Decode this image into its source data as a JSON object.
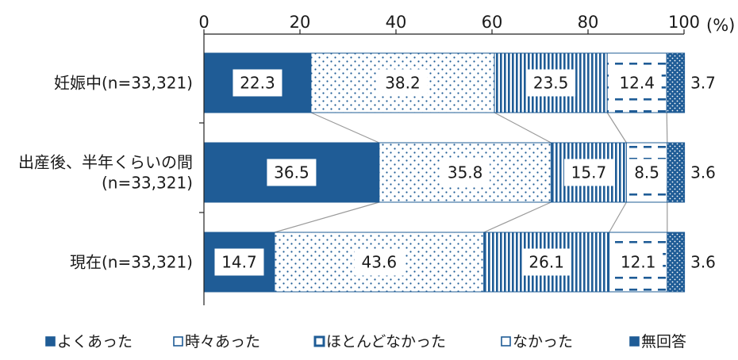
{
  "chart_data": {
    "type": "bar",
    "orientation": "horizontal",
    "stacked": true,
    "unit": "(%)",
    "xlim": [
      0,
      100
    ],
    "xticks": [
      "0",
      "20",
      "40",
      "60",
      "80",
      "100"
    ],
    "categories": [
      [
        "妊娠中(n=33,321)"
      ],
      [
        "出産後、半年くらいの間",
        "(n=33,321)"
      ],
      [
        "現在(n=33,321)"
      ]
    ],
    "series": [
      {
        "name": "よくあった",
        "values": [
          22.3,
          36.5,
          14.7
        ],
        "color": "#1f5c96",
        "pattern": "solid"
      },
      {
        "name": "時々あった",
        "values": [
          38.2,
          35.8,
          43.6
        ],
        "color": "#1f5c96",
        "pattern": "dots"
      },
      {
        "name": "ほとんどなかった",
        "values": [
          23.5,
          15.7,
          26.1
        ],
        "color": "#1f5c96",
        "pattern": "vlines"
      },
      {
        "name": "なかった",
        "values": [
          12.4,
          8.5,
          12.1
        ],
        "color": "#1f5c96",
        "pattern": "dashes"
      },
      {
        "name": "無回答",
        "values": [
          3.7,
          3.6,
          3.6
        ],
        "color": "#1f5c96",
        "pattern": "dense-dots"
      }
    ],
    "value_labels": [
      [
        "22.3",
        "38.2",
        "23.5",
        "12.4",
        "3.7"
      ],
      [
        "36.5",
        "35.8",
        "15.7",
        "8.5",
        "3.6"
      ],
      [
        "14.7",
        "43.6",
        "26.1",
        "12.1",
        "3.6"
      ]
    ],
    "legend_position": "bottom",
    "connector_lines": true,
    "grid": false
  }
}
